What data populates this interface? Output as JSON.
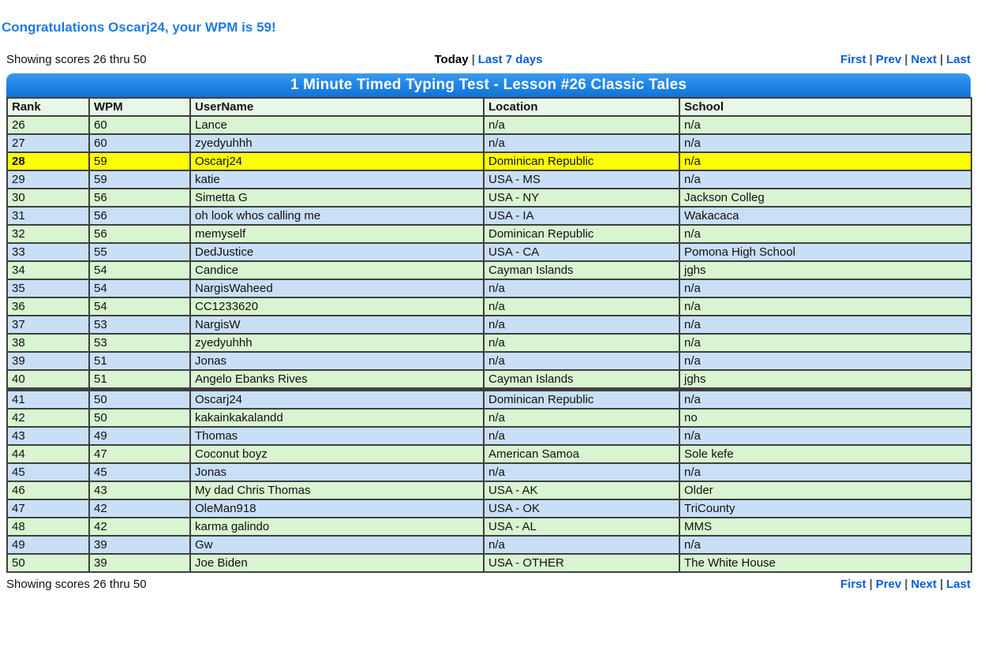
{
  "congrats": "Congratulations Oscarj24, your WPM is 59!",
  "showing_text": "Showing scores 26 thru 50",
  "filters": {
    "today": "Today",
    "last_7_days": "Last 7 days",
    "separator": "|"
  },
  "pagination": {
    "first": "First",
    "prev": "Prev",
    "next": "Next",
    "last": "Last",
    "separator": "|"
  },
  "table": {
    "title": "1 Minute Timed Typing Test - Lesson #26 Classic Tales",
    "columns": [
      "Rank",
      "WPM",
      "UserName",
      "Location",
      "School"
    ],
    "highlight_rank": 28,
    "divider_before_rank": 41,
    "rows": [
      {
        "rank": "26",
        "wpm": "60",
        "username": "Lance",
        "location": "n/a",
        "school": "n/a"
      },
      {
        "rank": "27",
        "wpm": "60",
        "username": "zyedyuhhh",
        "location": "n/a",
        "school": "n/a"
      },
      {
        "rank": "28",
        "wpm": "59",
        "username": "Oscarj24",
        "location": "Dominican Republic",
        "school": "n/a"
      },
      {
        "rank": "29",
        "wpm": "59",
        "username": "katie",
        "location": "USA - MS",
        "school": "n/a"
      },
      {
        "rank": "30",
        "wpm": "56",
        "username": "Simetta G",
        "location": "USA - NY",
        "school": "Jackson Colleg"
      },
      {
        "rank": "31",
        "wpm": "56",
        "username": "oh look whos calling me",
        "location": "USA - IA",
        "school": "Wakacaca"
      },
      {
        "rank": "32",
        "wpm": "56",
        "username": "memyself",
        "location": "Dominican Republic",
        "school": "n/a"
      },
      {
        "rank": "33",
        "wpm": "55",
        "username": "DedJustice",
        "location": "USA - CA",
        "school": "Pomona High School"
      },
      {
        "rank": "34",
        "wpm": "54",
        "username": "Candice",
        "location": "Cayman Islands",
        "school": "jghs"
      },
      {
        "rank": "35",
        "wpm": "54",
        "username": "NargisWaheed",
        "location": "n/a",
        "school": "n/a"
      },
      {
        "rank": "36",
        "wpm": "54",
        "username": "CC1233620",
        "location": "n/a",
        "school": "n/a"
      },
      {
        "rank": "37",
        "wpm": "53",
        "username": "NargisW",
        "location": "n/a",
        "school": "n/a"
      },
      {
        "rank": "38",
        "wpm": "53",
        "username": "zyedyuhhh",
        "location": "n/a",
        "school": "n/a"
      },
      {
        "rank": "39",
        "wpm": "51",
        "username": "Jonas",
        "location": "n/a",
        "school": "n/a"
      },
      {
        "rank": "40",
        "wpm": "51",
        "username": "Angelo Ebanks Rives",
        "location": "Cayman Islands",
        "school": "jghs"
      },
      {
        "rank": "41",
        "wpm": "50",
        "username": "Oscarj24",
        "location": "Dominican Republic",
        "school": "n/a"
      },
      {
        "rank": "42",
        "wpm": "50",
        "username": "kakainkakalandd",
        "location": "n/a",
        "school": "no"
      },
      {
        "rank": "43",
        "wpm": "49",
        "username": "Thomas",
        "location": "n/a",
        "school": "n/a"
      },
      {
        "rank": "44",
        "wpm": "47",
        "username": "Coconut boyz",
        "location": "American Samoa",
        "school": "Sole kefe"
      },
      {
        "rank": "45",
        "wpm": "45",
        "username": "Jonas",
        "location": "n/a",
        "school": "n/a"
      },
      {
        "rank": "46",
        "wpm": "43",
        "username": "My dad Chris Thomas",
        "location": "USA - AK",
        "school": "Older"
      },
      {
        "rank": "47",
        "wpm": "42",
        "username": "OleMan918",
        "location": "USA - OK",
        "school": "TriCounty"
      },
      {
        "rank": "48",
        "wpm": "42",
        "username": "karma galindo",
        "location": "USA - AL",
        "school": "MMS"
      },
      {
        "rank": "49",
        "wpm": "39",
        "username": "Gw",
        "location": "n/a",
        "school": "n/a"
      },
      {
        "rank": "50",
        "wpm": "39",
        "username": "Joe Biden",
        "location": "USA - OTHER",
        "school": "The White House"
      }
    ]
  },
  "colors": {
    "accent_blue": "#1f7ae0",
    "link_blue": "#0b5cd5",
    "row_green": "#d9f4d1",
    "row_blue": "#c9dff6",
    "row_highlight": "#ffff00",
    "header_row_bg": "#e8f8e8",
    "title_bar_top": "#3b9bf0",
    "title_bar_bottom": "#1273d6",
    "table_border": "#3f3f3f"
  }
}
